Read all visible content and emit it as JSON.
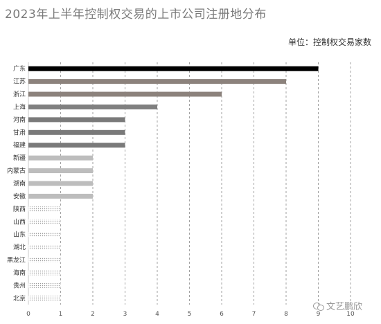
{
  "title": "2023年上半年控制权交易的上市公司注册地分布",
  "unit_label": "单位：控制权交易家数",
  "watermark": "文艺鹏欣",
  "watermark_icon": "wechat-icon",
  "chart_data": {
    "type": "bar",
    "orientation": "horizontal",
    "title": "2023年上半年控制权交易的上市公司注册地分布",
    "xlabel": "",
    "ylabel": "",
    "xlim": [
      0,
      10
    ],
    "x_ticks": [
      "0",
      "1",
      "2",
      "3",
      "4",
      "5",
      "6",
      "7",
      "8",
      "9",
      "10"
    ],
    "grid": "vertical dashed",
    "categories": [
      "广东",
      "江苏",
      "浙江",
      "上海",
      "河南",
      "甘肃",
      "福建",
      "新疆",
      "内蒙古",
      "湖南",
      "安徽",
      "陕西",
      "山西",
      "山东",
      "湖北",
      "黑龙江",
      "海南",
      "贵州",
      "北京"
    ],
    "values": [
      9,
      8,
      6,
      4,
      3,
      3,
      3,
      2,
      2,
      2,
      2,
      1,
      1,
      1,
      1,
      1,
      1,
      1,
      1
    ],
    "colors": {
      "9": "#000000",
      "8": "#8c827c",
      "6": "#8c827c",
      "4": "#808080",
      "3": "#7a7a7a",
      "2": "#bdbdbd",
      "1": "#cfcfcf"
    }
  }
}
